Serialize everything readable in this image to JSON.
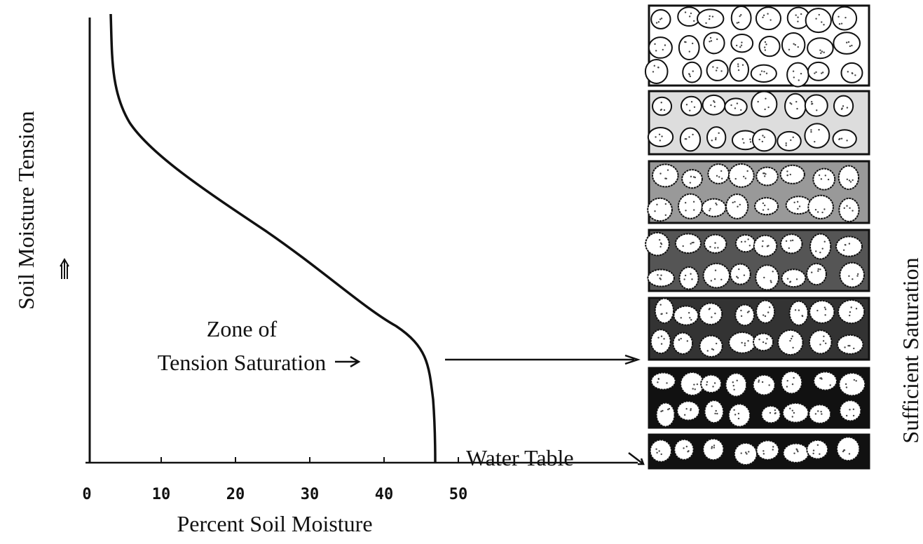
{
  "axes": {
    "y_label": "Soil Moisture Tension",
    "x_label": "Percent Soil Moisture",
    "x_ticks": [
      "0",
      "10",
      "20",
      "30",
      "40",
      "50"
    ]
  },
  "annotations": {
    "zone": [
      "Zone of",
      "Tension Saturation"
    ],
    "water_table": "Water Table"
  },
  "panel_label": "Sufficient Saturation"
}
